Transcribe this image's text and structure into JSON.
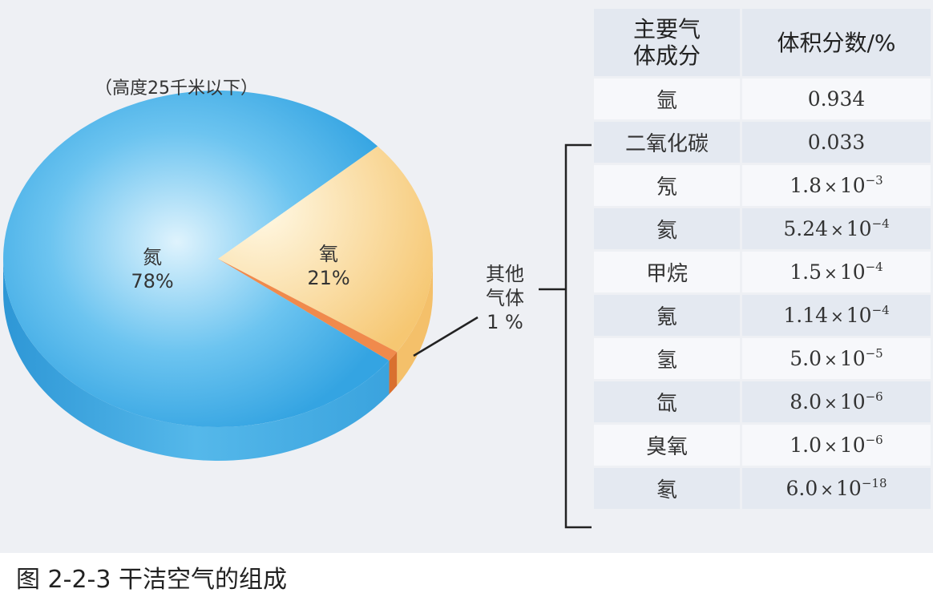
{
  "caption": "图 2-2-3 干洁空气的组成",
  "chart_data": {
    "type": "pie",
    "subtitle": "（高度25千米以下）",
    "slices": [
      {
        "name": "氮",
        "value": 78,
        "label": "78%",
        "color": "#4fb3e8"
      },
      {
        "name": "氧",
        "value": 21,
        "label": "21%",
        "color": "#f7d48a"
      },
      {
        "name": "其他气体",
        "value": 1,
        "label": "1 %",
        "color": "#f0955a"
      }
    ],
    "other_label_lines": [
      "其他",
      "气体",
      "1 %"
    ]
  },
  "table": {
    "headers": [
      "主要气\n体成分",
      "体积分数/%"
    ],
    "header_gas_lines": [
      "主要气",
      "体成分"
    ],
    "header_value": "体积分数/%",
    "rows": [
      {
        "gas": "氩",
        "mantissa": "0.934",
        "exponent": ""
      },
      {
        "gas": "二氧化碳",
        "mantissa": "0.033",
        "exponent": ""
      },
      {
        "gas": "氖",
        "mantissa": "1.8",
        "exponent": "−3"
      },
      {
        "gas": "氦",
        "mantissa": "5.24",
        "exponent": "−4"
      },
      {
        "gas": "甲烷",
        "mantissa": "1.5",
        "exponent": "−4"
      },
      {
        "gas": "氪",
        "mantissa": "1.14",
        "exponent": "−4"
      },
      {
        "gas": "氢",
        "mantissa": "5.0",
        "exponent": "−5"
      },
      {
        "gas": "氙",
        "mantissa": "8.0",
        "exponent": "−6"
      },
      {
        "gas": "臭氧",
        "mantissa": "1.0",
        "exponent": "−6"
      },
      {
        "gas": "氡",
        "mantissa": "6.0",
        "exponent": "−18"
      }
    ],
    "times_sign": "×",
    "base": "10"
  }
}
